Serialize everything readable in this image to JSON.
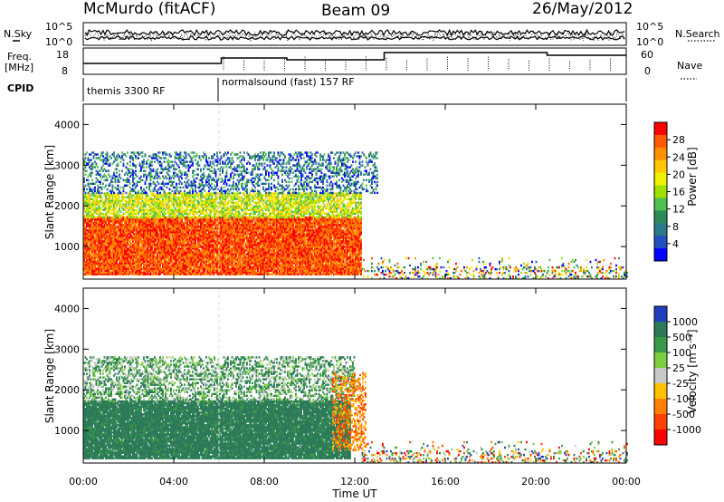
{
  "header": {
    "station": "McMurdo (fitACF)",
    "beam": "Beam 09",
    "date": "26/May/2012"
  },
  "summary": {
    "left_labels": {
      "nsky": "N.Sky",
      "freq_line1": "Freq.",
      "freq_line2": "[MHz]",
      "cpid": "CPID"
    },
    "right_labels": {
      "nsearch": "N.Search",
      "nave": "Nave"
    },
    "noise_ticks": [
      "10^5",
      "10^0"
    ],
    "freq_ticks": [
      "18",
      "8"
    ],
    "nave_ticks": [
      "60",
      "0"
    ],
    "cpid_modes": [
      "themis 3300 RF",
      "normalsound (fast) 157 RF"
    ],
    "mode_change_hour": 6.0
  },
  "chart_data": [
    {
      "type": "heatmap",
      "name": "power",
      "xlabel": "Time UT",
      "ylabel": "Slant Range [km]",
      "xlim": [
        0,
        24
      ],
      "ylim": [
        200,
        4500
      ],
      "x_ticks": [
        "00:00",
        "04:00",
        "08:00",
        "12:00",
        "16:00",
        "20:00",
        "00:00"
      ],
      "y_ticks": [
        1000,
        2000,
        3000,
        4000
      ],
      "colorbar": {
        "label": "Power [dB]",
        "ticks": [
          "28",
          "24",
          "20",
          "16",
          "12",
          "8",
          "4"
        ],
        "colors": [
          "#ff0000",
          "#ff5a00",
          "#ff9000",
          "#ffc800",
          "#f0f000",
          "#a0e000",
          "#50c050",
          "#2e8b57",
          "#2a7a8a",
          "#2050c0",
          "#0000ff"
        ]
      },
      "bands": [
        {
          "t0": 0.0,
          "t1": 12.3,
          "r0": 300,
          "r1": 1700,
          "level": "high"
        },
        {
          "t0": 0.0,
          "t1": 12.3,
          "r0": 1700,
          "r1": 2300,
          "level": "mid"
        },
        {
          "t0": 0.0,
          "t1": 13.0,
          "r0": 2300,
          "r1": 3300,
          "level": "low"
        },
        {
          "t0": 12.3,
          "t1": 24.0,
          "r0": 200,
          "r1": 700,
          "level": "sparse"
        }
      ]
    },
    {
      "type": "heatmap",
      "name": "velocity",
      "xlabel": "Time UT",
      "ylabel": "Slant Range [km]",
      "xlim": [
        0,
        24
      ],
      "ylim": [
        200,
        4500
      ],
      "x_ticks": [
        "00:00",
        "04:00",
        "08:00",
        "12:00",
        "16:00",
        "20:00",
        "00:00"
      ],
      "y_ticks": [
        1000,
        2000,
        3000,
        4000
      ],
      "colorbar": {
        "label": "Velocity [m s⁻¹]",
        "ticks": [
          "1000",
          "500",
          "100",
          "25",
          "-25",
          "-100",
          "-500",
          "-1000"
        ],
        "colors": [
          "#2040c0",
          "#2d7a5a",
          "#3a9a4a",
          "#7cd040",
          "#c8c8c8",
          "#ffc000",
          "#ff8000",
          "#ff4000",
          "#ff0000"
        ]
      },
      "bands": [
        {
          "t0": 0.0,
          "t1": 11.8,
          "r0": 300,
          "r1": 1700,
          "level": "green"
        },
        {
          "t0": 0.0,
          "t1": 12.0,
          "r0": 1700,
          "r1": 2800,
          "level": "mixed"
        },
        {
          "t0": 11.0,
          "t1": 12.5,
          "r0": 500,
          "r1": 2400,
          "level": "orange"
        },
        {
          "t0": 12.3,
          "t1": 24.0,
          "r0": 200,
          "r1": 700,
          "level": "sparse"
        }
      ]
    }
  ]
}
